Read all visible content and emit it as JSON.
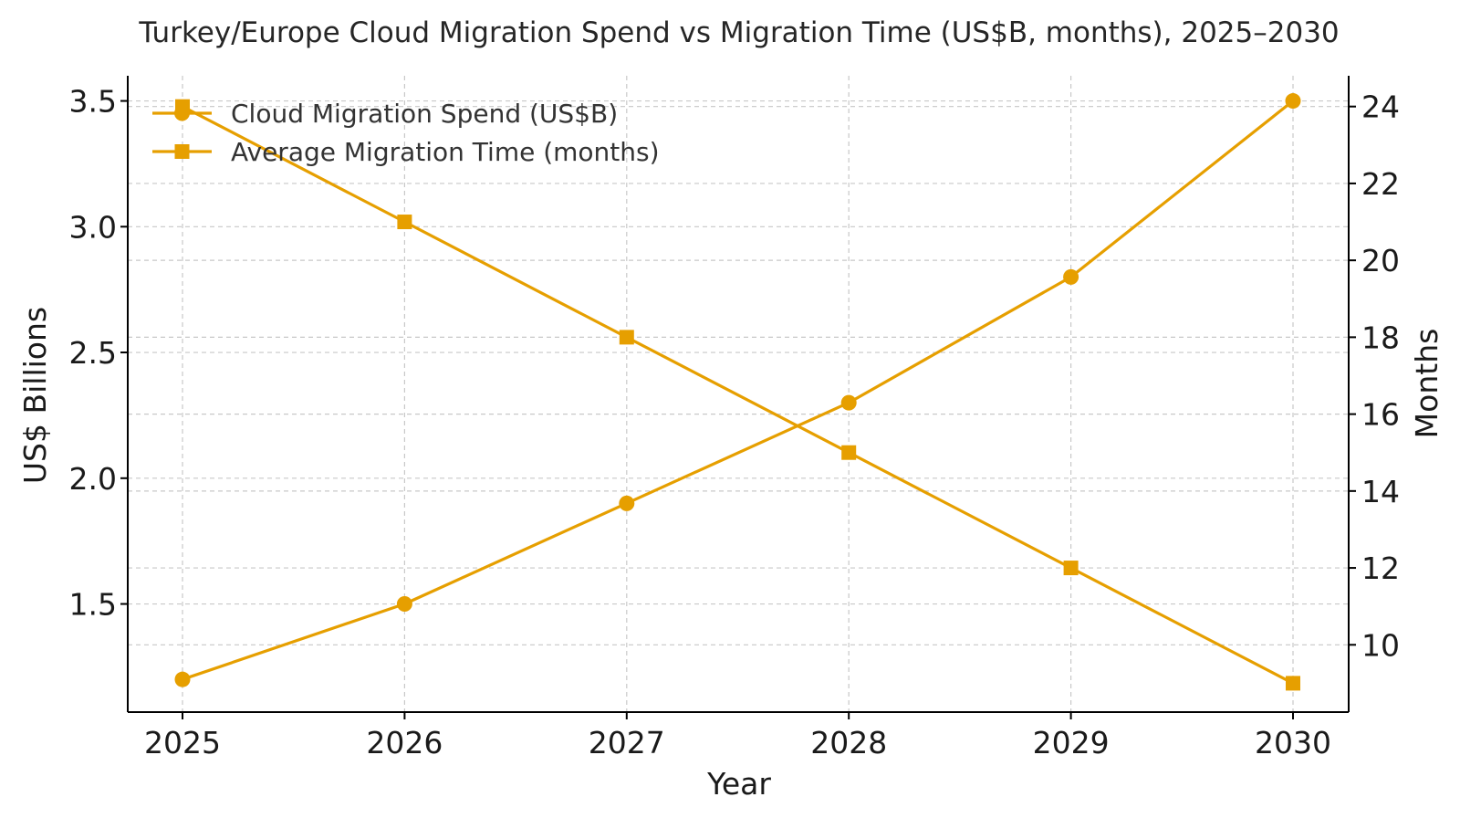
{
  "chart_data": {
    "type": "line",
    "title": "Turkey/Europe Cloud Migration Spend vs Migration Time (US$B, months), 2025–2030",
    "xlabel": "Year",
    "ylabel": "US$ Billions",
    "y2label": "Months",
    "x": [
      "2025",
      "2026",
      "2027",
      "2028",
      "2029",
      "2030"
    ],
    "ylim": [
      1.07,
      3.6
    ],
    "y2lim": [
      8.25,
      24.8
    ],
    "yticks": [
      "1.5",
      "2.0",
      "2.5",
      "3.0",
      "3.5"
    ],
    "y2ticks": [
      "10",
      "12",
      "14",
      "16",
      "18",
      "20",
      "22",
      "24"
    ],
    "grid": true,
    "legend_position": "top-left",
    "series": [
      {
        "name": "Cloud Migration Spend (US$B)",
        "axis": "left",
        "marker": "circle",
        "color": "#E69F00",
        "values": [
          1.2,
          1.5,
          1.9,
          2.3,
          2.8,
          3.5
        ]
      },
      {
        "name": "Average Migration Time (months)",
        "axis": "right",
        "marker": "square",
        "color": "#E69F00",
        "values": [
          24,
          21,
          18,
          15,
          12,
          9
        ]
      }
    ]
  }
}
